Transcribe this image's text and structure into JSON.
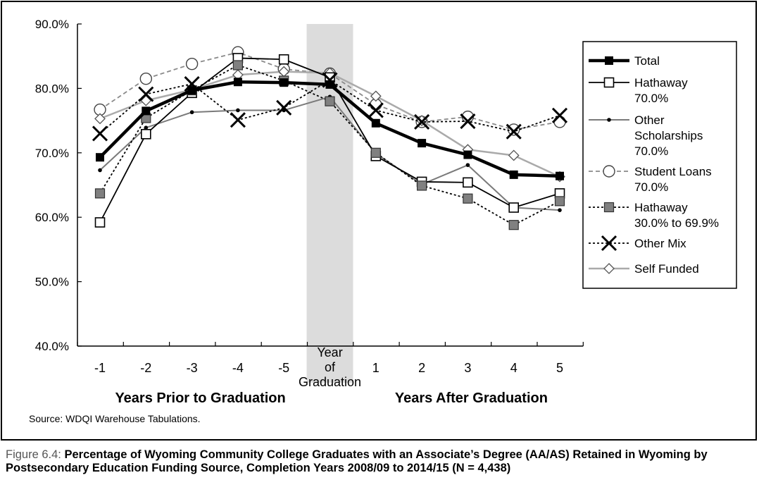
{
  "caption": {
    "label": "Figure 6.4:",
    "text": "Percentage of Wyoming Community College Graduates with an Associate’s Degree (AA/AS) Retained in Wyoming by Postsecondary Education Funding Source, Completion Years 2008/09 to 2014/15 (N = 4,438)"
  },
  "source": "Source: WDQI Warehouse Tabulations.",
  "chart_data": {
    "type": "line",
    "title": "",
    "xlabel": "",
    "ylabel": "",
    "ylim": [
      40,
      90
    ],
    "yticks": [
      "40.0%",
      "50.0%",
      "60.0%",
      "70.0%",
      "80.0%",
      "90.0%"
    ],
    "categories": [
      "-1",
      "-2",
      "-3",
      "-4",
      "-5",
      "Year of Graduation",
      "1",
      "2",
      "3",
      "4",
      "5"
    ],
    "graduation_label_lines": [
      "Year",
      "of",
      "Graduation"
    ],
    "section_labels": {
      "prior": "Years Prior to Graduation",
      "after": "Years After Graduation"
    },
    "grid": false,
    "legend_position": "right",
    "highlight_band": "Year of Graduation",
    "series": [
      {
        "name": "Total",
        "name_lines": [
          "Total"
        ],
        "values": [
          69.3,
          76.5,
          79.7,
          81.0,
          80.9,
          80.6,
          74.6,
          71.5,
          69.7,
          66.6,
          66.4
        ],
        "color": "#000000",
        "marker": "filled-square",
        "line": "solid-thick"
      },
      {
        "name": "Hathaway 70.0%",
        "name_lines": [
          "Hathaway",
          "70.0%"
        ],
        "values": [
          59.2,
          72.9,
          79.3,
          84.7,
          84.5,
          81.7,
          69.5,
          65.5,
          65.4,
          61.5,
          63.7
        ],
        "color": "#000000",
        "marker": "open-square",
        "line": "solid"
      },
      {
        "name": "Other Scholarships 70.0%",
        "name_lines": [
          "Other",
          "Scholarships",
          "70.0%"
        ],
        "values": [
          67.3,
          73.9,
          76.3,
          76.6,
          76.6,
          78.7,
          69.9,
          65.1,
          68.1,
          61.5,
          61.1
        ],
        "color": "#7a7a7a",
        "marker": "dot",
        "line": "solid"
      },
      {
        "name": "Student Loans 70.0%",
        "name_lines": [
          "Student Loans",
          "70.0%"
        ],
        "values": [
          76.7,
          81.5,
          83.8,
          85.6,
          83.0,
          82.3,
          77.5,
          74.8,
          75.6,
          73.6,
          74.8
        ],
        "color": "#8a8a8a",
        "marker": "open-circle",
        "line": "dashed"
      },
      {
        "name": "Hathaway 30.0% to 69.9%",
        "name_lines": [
          "Hathaway",
          "30.0% to 69.9%"
        ],
        "values": [
          63.7,
          75.4,
          79.7,
          83.6,
          81.2,
          78.0,
          70.0,
          64.9,
          62.9,
          58.8,
          62.5
        ],
        "color": "#000000",
        "marker": "gray-square",
        "line": "dotted"
      },
      {
        "name": "Other Mix",
        "name_lines": [
          "Other Mix"
        ],
        "values": [
          73.0,
          79.1,
          80.7,
          75.1,
          77.0,
          81.3,
          76.6,
          74.8,
          74.9,
          73.3,
          75.8
        ],
        "color": "#000000",
        "marker": "x",
        "line": "dotted"
      },
      {
        "name": "Self Funded",
        "name_lines": [
          "Self Funded"
        ],
        "values": [
          75.3,
          78.1,
          79.8,
          82.1,
          82.6,
          82.4,
          78.8,
          75.0,
          70.5,
          69.6,
          66.3
        ],
        "color": "#aaaaaa",
        "marker": "open-diamond",
        "line": "solid"
      }
    ]
  }
}
